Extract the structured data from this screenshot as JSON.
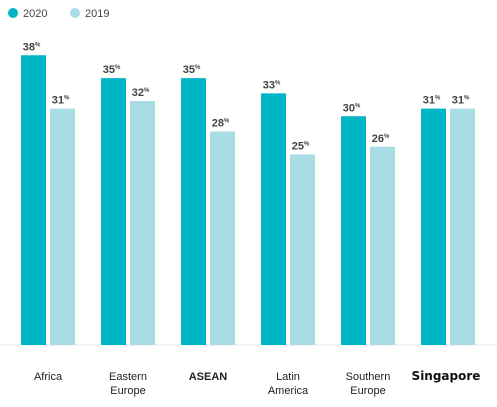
{
  "chart_data": {
    "type": "bar",
    "title": "",
    "xlabel": "",
    "ylabel": "",
    "ylim": [
      0,
      40
    ],
    "grid": false,
    "legend_position": "top-left",
    "value_suffix": "%",
    "categories": [
      [
        "Africa"
      ],
      [
        "Eastern",
        "Europe"
      ],
      [
        "ASEAN"
      ],
      [
        "Latin",
        "America"
      ],
      [
        "Southern",
        "Europe"
      ],
      [
        "Singapore"
      ]
    ],
    "highlighted_category": "Singapore",
    "series": [
      {
        "name": "2020",
        "color": "#00b5c6",
        "values": [
          38,
          35,
          35,
          33,
          30,
          31
        ]
      },
      {
        "name": "2019",
        "color": "#a8dde6",
        "values": [
          31,
          32,
          28,
          25,
          26,
          31
        ]
      }
    ]
  }
}
